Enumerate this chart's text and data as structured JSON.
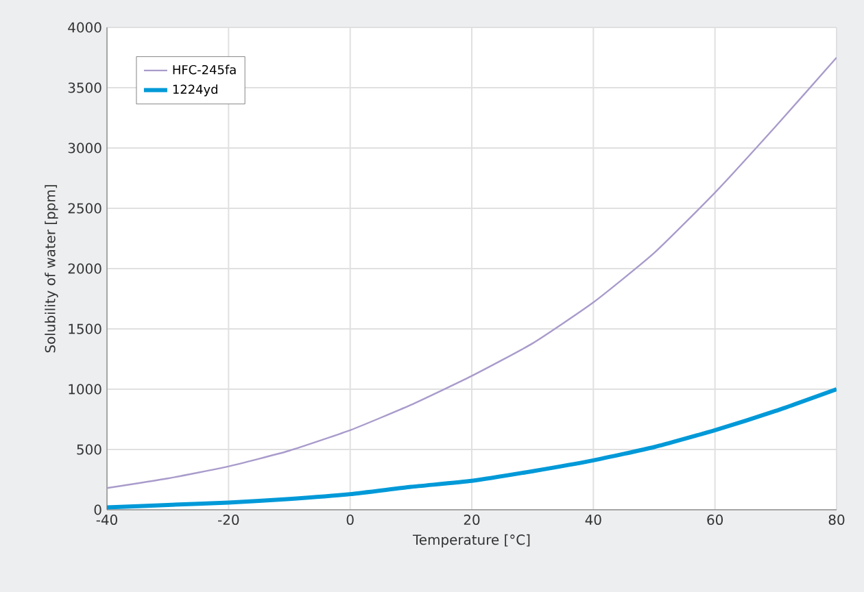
{
  "chart_data": {
    "type": "line",
    "xlabel": "Temperature [°C]",
    "ylabel": "Solubility of water [ppm]",
    "x": [
      -40,
      -30,
      -20,
      -10,
      0,
      10,
      20,
      30,
      40,
      50,
      60,
      70,
      80
    ],
    "series": [
      {
        "name": "HFC-245fa",
        "color": "#a99bcb",
        "values": [
          180,
          260,
          360,
          490,
          660,
          870,
          1110,
          1380,
          1720,
          2130,
          2630,
          3180,
          3750
        ]
      },
      {
        "name": "1224yd",
        "color": "#0099d8",
        "values": [
          20,
          40,
          60,
          90,
          130,
          190,
          240,
          320,
          410,
          520,
          660,
          820,
          1000
        ]
      }
    ],
    "xlim": [
      -40,
      80
    ],
    "ylim": [
      0,
      4000
    ],
    "xticks": [
      -40,
      -20,
      0,
      20,
      40,
      60,
      80
    ],
    "yticks": [
      0,
      500,
      1000,
      1500,
      2000,
      2500,
      3000,
      3500,
      4000
    ],
    "grid": true,
    "legend": "top left",
    "marker": "none",
    "line_style": "solid"
  }
}
